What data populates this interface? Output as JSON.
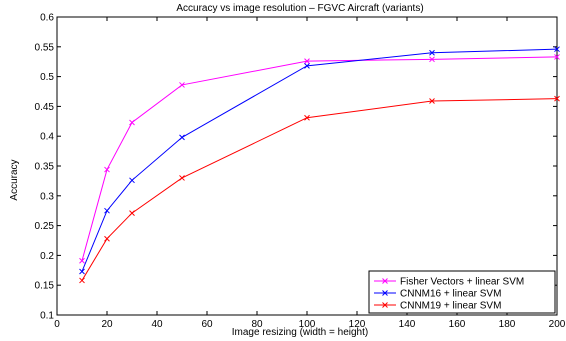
{
  "chart_data": {
    "type": "line",
    "title": "Accuracy vs image resolution – FGVC Aircraft (variants)",
    "xlabel": "Image resizing (width = height)",
    "ylabel": "Accuracy",
    "xlim": [
      0,
      200
    ],
    "ylim": [
      0.1,
      0.6
    ],
    "xticks": [
      0,
      20,
      40,
      60,
      80,
      100,
      120,
      140,
      160,
      180,
      200
    ],
    "yticks": [
      0.1,
      0.15,
      0.2,
      0.25,
      0.3,
      0.35,
      0.4,
      0.45,
      0.5,
      0.55,
      0.6
    ],
    "ytick_labels": [
      "0.1",
      "0.15",
      "0.2",
      "0.25",
      "0.3",
      "0.35",
      "0.4",
      "0.45",
      "0.5",
      "0.55",
      "0.6"
    ],
    "grid": false,
    "legend_position": "bottom-right",
    "x": [
      10,
      20,
      30,
      50,
      100,
      150,
      200
    ],
    "series": [
      {
        "name": "Fisher Vectors + linear SVM",
        "color": "#ff00ff",
        "marker": "x",
        "values": [
          0.191,
          0.344,
          0.423,
          0.486,
          0.526,
          0.529,
          0.533
        ]
      },
      {
        "name": "CNNM16 + linear SVM",
        "color": "#0000ff",
        "marker": "x",
        "values": [
          0.173,
          0.275,
          0.326,
          0.398,
          0.518,
          0.54,
          0.546
        ]
      },
      {
        "name": "CNNM19 + linear SVM",
        "color": "#ff0000",
        "marker": "x",
        "values": [
          0.158,
          0.228,
          0.271,
          0.33,
          0.431,
          0.459,
          0.463
        ]
      }
    ]
  }
}
